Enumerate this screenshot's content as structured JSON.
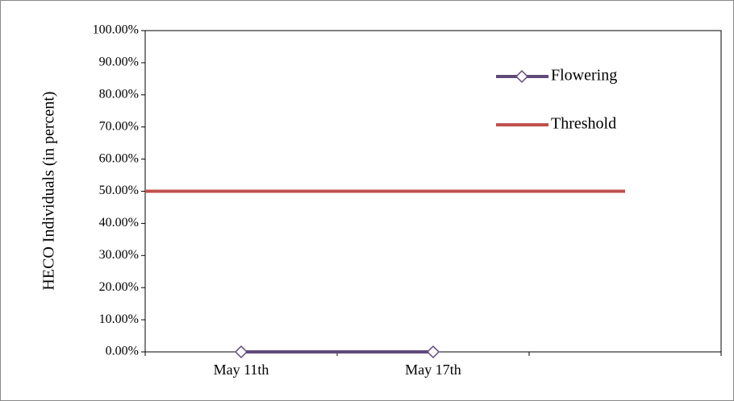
{
  "chart_data": {
    "type": "line",
    "y_label": "HECO Individuals (in percent)",
    "categories": [
      "May 11th",
      "May 17th",
      null
    ],
    "series": [
      {
        "name": "Flowering",
        "color": "#604a7b",
        "values": [
          0,
          0,
          null
        ]
      },
      {
        "name": "Threshold",
        "color": "#c0504d",
        "values": [
          50,
          50,
          50
        ]
      }
    ],
    "ylim": [
      0,
      100
    ],
    "yticks": [
      {
        "value": 0,
        "label": "0.00%"
      },
      {
        "value": 10,
        "label": "10.00%"
      },
      {
        "value": 20,
        "label": "20.00%"
      },
      {
        "value": 30,
        "label": "30.00%"
      },
      {
        "value": 40,
        "label": "40.00%"
      },
      {
        "value": 50,
        "label": "50.00%"
      },
      {
        "value": 60,
        "label": "60.00%"
      },
      {
        "value": 70,
        "label": "70.00%"
      },
      {
        "value": 80,
        "label": "80.00%"
      },
      {
        "value": 90,
        "label": "90.00%"
      },
      {
        "value": 100,
        "label": "100.00%"
      }
    ],
    "grid": false,
    "legend": "upper right"
  }
}
